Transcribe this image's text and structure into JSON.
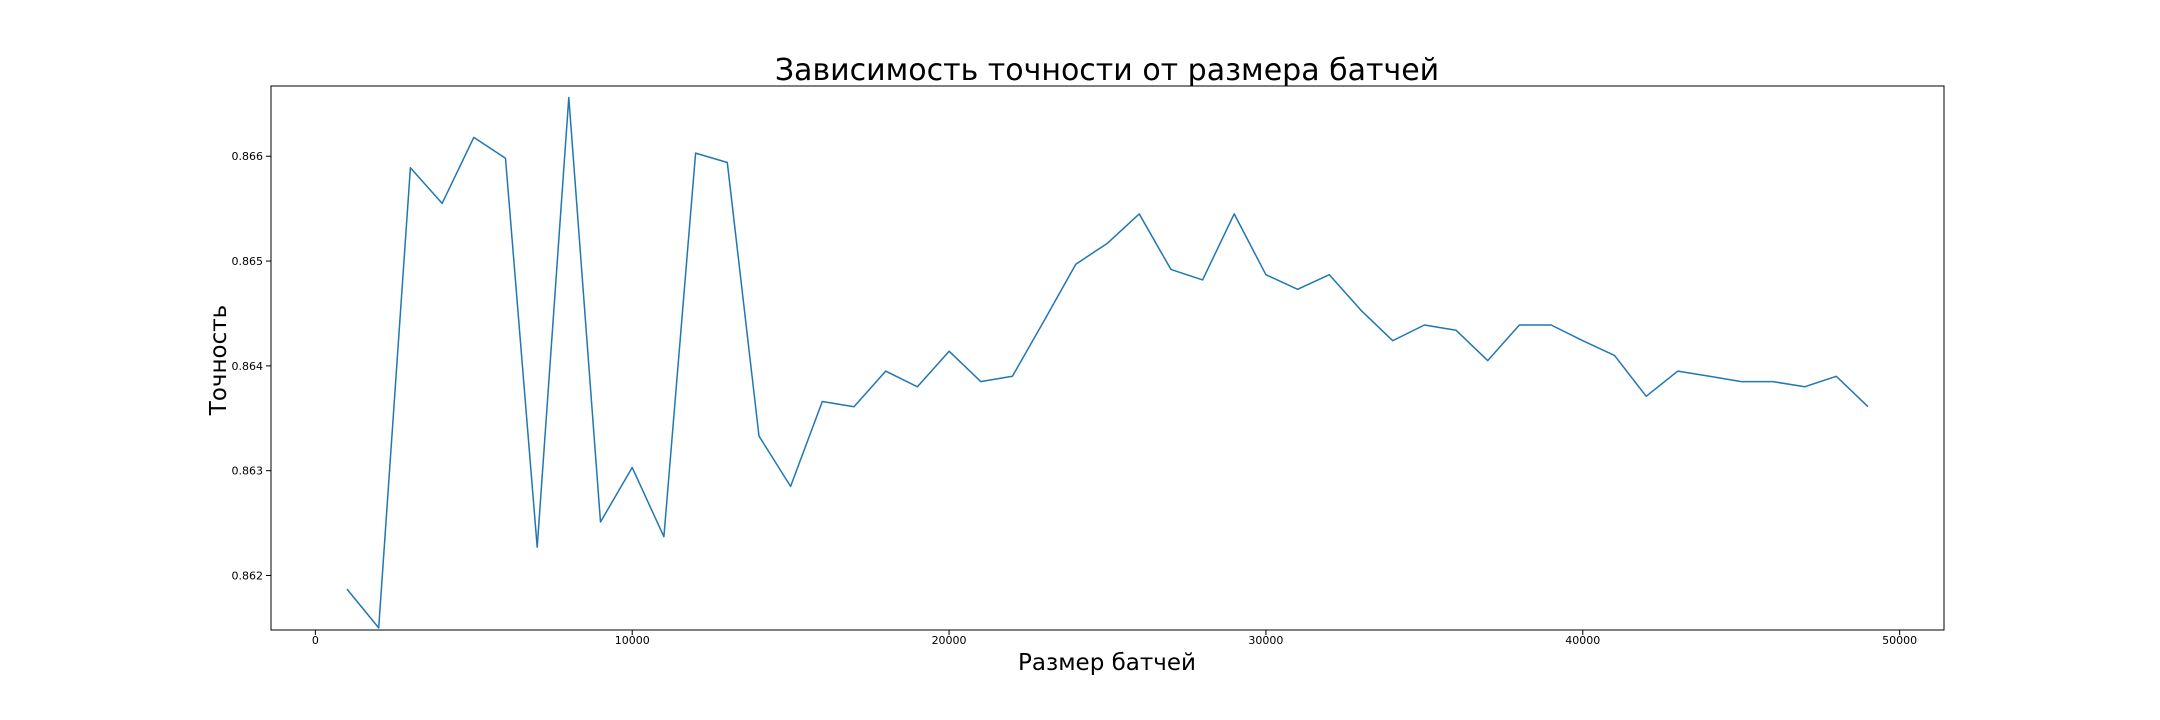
{
  "chart_data": {
    "type": "line",
    "title": "Зависимость точности от размера батчей",
    "xlabel": "Размер батчей",
    "ylabel": "Точность",
    "xlim": [
      -1400,
      51400
    ],
    "ylim": [
      0.86148,
      0.86667
    ],
    "xticks": [
      0,
      10000,
      20000,
      30000,
      40000,
      50000
    ],
    "xtick_labels": [
      "0",
      "10000",
      "20000",
      "30000",
      "40000",
      "50000"
    ],
    "yticks": [
      0.862,
      0.863,
      0.864,
      0.865,
      0.866
    ],
    "ytick_labels": [
      "0.862",
      "0.863",
      "0.864",
      "0.865",
      "0.866"
    ],
    "grid": false,
    "series": [
      {
        "color": "#1f77b4",
        "x": [
          1000,
          2000,
          3000,
          4000,
          5000,
          6000,
          7000,
          8000,
          9000,
          10000,
          11000,
          12000,
          13000,
          14000,
          15000,
          16000,
          17000,
          18000,
          19000,
          20000,
          21000,
          22000,
          23000,
          24000,
          25000,
          26000,
          27000,
          28000,
          29000,
          30000,
          31000,
          32000,
          33000,
          34000,
          35000,
          36000,
          37000,
          38000,
          39000,
          40000,
          41000,
          42000,
          43000,
          44000,
          45000,
          46000,
          47000,
          48000,
          49000
        ],
        "y": [
          0.86187,
          0.8615,
          0.86589,
          0.86555,
          0.86618,
          0.86598,
          0.86227,
          0.86656,
          0.86251,
          0.86303,
          0.86237,
          0.86603,
          0.86594,
          0.86333,
          0.86285,
          0.86366,
          0.86361,
          0.86395,
          0.8638,
          0.86414,
          0.86385,
          0.8639,
          0.86443,
          0.86497,
          0.86517,
          0.86545,
          0.86492,
          0.86482,
          0.86545,
          0.86487,
          0.86473,
          0.86487,
          0.86453,
          0.86424,
          0.86439,
          0.86434,
          0.86405,
          0.86439,
          0.86439,
          0.86424,
          0.8641,
          0.86371,
          0.86395,
          0.8639,
          0.86385,
          0.86385,
          0.8638,
          0.8639,
          0.86361
        ]
      }
    ]
  }
}
